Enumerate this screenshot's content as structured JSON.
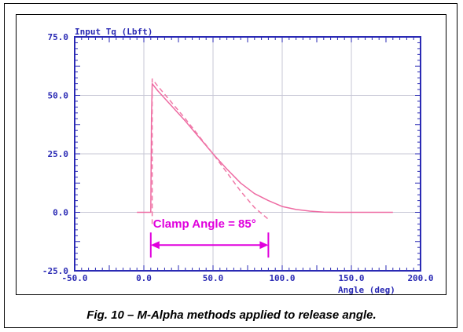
{
  "caption": "Fig. 10 – M-Alpha methods applied to release angle.",
  "colors": {
    "axis": "#2a2ab4",
    "grid": "#c7c7d6",
    "series": "#ee6aa2",
    "dashed": "#f07aa8",
    "annotation": "#e000dd"
  },
  "chart_data": {
    "type": "line",
    "title": "Input Tq (Lbft)",
    "ylabel": "Input Tq (Lbft)",
    "xlabel": "Angle (deg)",
    "xlim": [
      -50,
      200
    ],
    "ylim": [
      -25,
      75
    ],
    "xticks": [
      -50,
      0,
      50,
      100,
      150,
      200
    ],
    "yticks": [
      -25,
      0,
      25,
      50,
      75
    ],
    "xtick_labels": [
      "-50.0",
      "0.0",
      "50.0",
      "100.0",
      "150.0",
      "200.0"
    ],
    "ytick_labels": [
      "-25.0",
      "0.0",
      "25.0",
      "50.0",
      "75.0"
    ],
    "grid": true,
    "series": [
      {
        "style": "solid",
        "x": [
          -5,
          5,
          5.5,
          6,
          10,
          20,
          30,
          40,
          50,
          60,
          70,
          80,
          90,
          100,
          110,
          120,
          130,
          140,
          160,
          180
        ],
        "y": [
          0,
          0,
          40,
          55,
          52,
          45.5,
          39,
          32,
          25,
          18.5,
          12.5,
          8,
          5,
          2.5,
          1.2,
          0.5,
          0.1,
          0,
          0,
          0
        ]
      },
      {
        "style": "dashed",
        "x": [
          6,
          6,
          6,
          10,
          20,
          30,
          40,
          50,
          60,
          70,
          80,
          86,
          90
        ],
        "y": [
          -5,
          35,
          57,
          54,
          47,
          40,
          32.5,
          25,
          17,
          9,
          2,
          -1,
          -3
        ]
      }
    ],
    "annotations": [
      {
        "text": "Clamp Angle = 85°",
        "x_start": 5,
        "x_end": 90,
        "y": -14,
        "label_y": -6.5
      }
    ]
  }
}
